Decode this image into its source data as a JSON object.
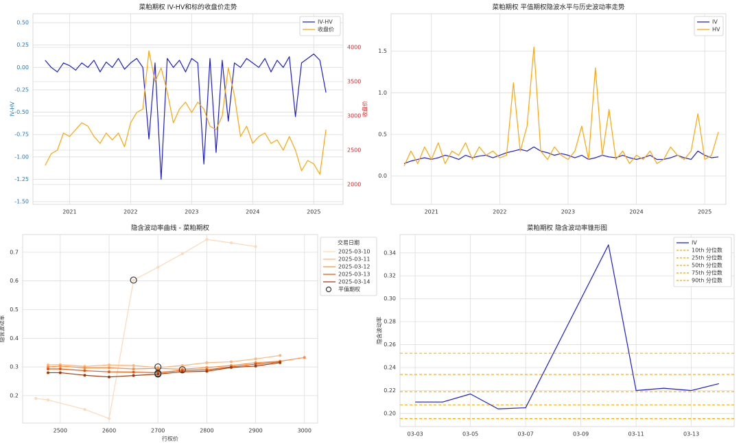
{
  "chart_data": [
    {
      "type": "line",
      "title": "菜粕期权 IV-HV和标的收盘价走势",
      "ylabel": "IV-HV",
      "y2label": "收盘价",
      "ylabel_color": "#1f77b4",
      "y2label_color": "#d62728",
      "legend": "upper right",
      "grid": true,
      "x": [
        2020.6,
        2020.7,
        2020.8,
        2020.9,
        2021.0,
        2021.1,
        2021.2,
        2021.3,
        2021.4,
        2021.5,
        2021.6,
        2021.7,
        2021.8,
        2021.9,
        2022.0,
        2022.1,
        2022.2,
        2022.3,
        2022.4,
        2022.5,
        2022.6,
        2022.7,
        2022.8,
        2022.9,
        2023.0,
        2023.1,
        2023.2,
        2023.3,
        2023.4,
        2023.5,
        2023.6,
        2023.7,
        2023.8,
        2023.9,
        2024.0,
        2024.1,
        2024.2,
        2024.3,
        2024.4,
        2024.5,
        2024.6,
        2024.7,
        2024.8,
        2024.9,
        2025.0,
        2025.1,
        2025.2
      ],
      "xlim": [
        2020.4,
        2025.48
      ],
      "xticks": [
        2021,
        2022,
        2023,
        2024,
        2025
      ],
      "ylim": [
        -1.53,
        0.6
      ],
      "yticks": [
        {
          "value": 0.5,
          "label": "0.50"
        },
        0.25,
        {
          "value": 0,
          "label": "0.00"
        },
        -0.25,
        {
          "value": -0.5,
          "label": "-0.50"
        },
        -0.75,
        {
          "value": -1,
          "label": "-1.00"
        },
        -1.25,
        {
          "value": -1.5,
          "label": "-1.50"
        }
      ],
      "y2lim": [
        1710,
        4490
      ],
      "y2ticks": [
        2000,
        2500,
        3000,
        3500,
        4000
      ],
      "series": [
        {
          "name": "IV-HV",
          "color": "#1a1adb",
          "values": [
            0.08,
            0,
            -0.05,
            0.05,
            0.02,
            -0.03,
            0.05,
            0,
            0.08,
            -0.05,
            0.06,
            0,
            0.1,
            -0.02,
            0.05,
            0.1,
            0,
            -0.8,
            0.05,
            -1.25,
            0.1,
            0,
            0.08,
            -0.05,
            0.1,
            0.05,
            -1.08,
            0.1,
            -0.95,
            0.08,
            -0.6,
            0.05,
            0,
            0.1,
            0.05,
            0,
            0.1,
            -0.05,
            0.08,
            0,
            0.12,
            -0.55,
            0.05,
            0.1,
            0.15,
            0.08,
            -0.28
          ]
        },
        {
          "name": "收盘价",
          "color": "#ffa500",
          "axis": "y2",
          "values": [
            2280,
            2450,
            2500,
            2750,
            2700,
            2800,
            2900,
            2850,
            2700,
            2600,
            2750,
            2650,
            2750,
            2550,
            2900,
            3050,
            3100,
            3950,
            3500,
            3700,
            3350,
            2900,
            3100,
            3200,
            3050,
            3200,
            3100,
            2850,
            2800,
            3000,
            3700,
            3300,
            2700,
            2850,
            2600,
            2700,
            2750,
            2600,
            2650,
            2500,
            2700,
            2500,
            2200,
            2350,
            2300,
            2150,
            2800
          ]
        }
      ]
    },
    {
      "type": "line",
      "title": "菜粕期权 平值期权隐波水平与历史波动率走势",
      "legend": "upper right",
      "grid": true,
      "x": [
        2020.6,
        2020.7,
        2020.8,
        2020.9,
        2021.0,
        2021.1,
        2021.2,
        2021.3,
        2021.4,
        2021.5,
        2021.6,
        2021.7,
        2021.8,
        2021.9,
        2022.0,
        2022.1,
        2022.2,
        2022.3,
        2022.4,
        2022.5,
        2022.6,
        2022.7,
        2022.8,
        2022.9,
        2023.0,
        2023.1,
        2023.2,
        2023.3,
        2023.4,
        2023.5,
        2023.6,
        2023.7,
        2023.8,
        2023.9,
        2024.0,
        2024.1,
        2024.2,
        2024.3,
        2024.4,
        2024.5,
        2024.6,
        2024.7,
        2024.8,
        2024.9,
        2025.0,
        2025.1,
        2025.2
      ],
      "xlim": [
        2020.41,
        2025.31
      ],
      "xticks": [
        2021,
        2022,
        2023,
        2024,
        2025
      ],
      "ylim": [
        -0.34,
        1.95
      ],
      "yticks": [
        {
          "value": 0,
          "label": "0.0"
        },
        0.5,
        {
          "value": 1,
          "label": "1.0"
        },
        1.5
      ],
      "series": [
        {
          "name": "IV",
          "color": "#1a1adb",
          "values": [
            0.15,
            0.18,
            0.2,
            0.22,
            0.2,
            0.22,
            0.25,
            0.23,
            0.2,
            0.25,
            0.22,
            0.24,
            0.25,
            0.22,
            0.25,
            0.28,
            0.3,
            0.32,
            0.3,
            0.35,
            0.3,
            0.28,
            0.25,
            0.27,
            0.25,
            0.22,
            0.25,
            0.2,
            0.22,
            0.25,
            0.23,
            0.22,
            0.25,
            0.22,
            0.2,
            0.22,
            0.25,
            0.2,
            0.2,
            0.22,
            0.25,
            0.22,
            0.2,
            0.3,
            0.25,
            0.22,
            0.23
          ]
        },
        {
          "name": "HV",
          "color": "#ffa500",
          "values": [
            0.12,
            0.3,
            0.15,
            0.35,
            0.2,
            0.4,
            0.15,
            0.3,
            0.25,
            0.4,
            0.2,
            0.35,
            0.25,
            0.3,
            0.22,
            0.25,
            1.12,
            0.3,
            0.6,
            1.55,
            0.3,
            0.2,
            0.35,
            0.25,
            0.2,
            0.3,
            0.6,
            0.2,
            1.3,
            0.25,
            0.8,
            0.2,
            0.3,
            0.15,
            0.25,
            0.2,
            0.3,
            0.15,
            0.2,
            0.35,
            0.25,
            0.2,
            0.3,
            0.75,
            0.2,
            0.25,
            0.53
          ]
        }
      ]
    },
    {
      "type": "line",
      "title": "隐含波动率曲线 - 菜粕期权",
      "xlabel": "行权价",
      "ylabel": "隐含波动率",
      "legend": "outside right",
      "legend_title": "交易日期",
      "grid": true,
      "markers": true,
      "xlim": [
        2423,
        3027
      ],
      "xticks": [
        2500,
        2600,
        2700,
        2800,
        2900,
        3000
      ],
      "ylim": [
        0.104,
        0.762
      ],
      "yticks": [
        0.2,
        0.3,
        0.4,
        0.5,
        0.6,
        0.7
      ],
      "series": [
        {
          "name": "2025-03-10",
          "color": "#fdd9b8",
          "x": [
            2450,
            2475,
            2550,
            2600,
            2650,
            2700,
            2750,
            2800,
            2850,
            2900
          ],
          "values": [
            0.19,
            0.185,
            0.152,
            0.12,
            0.603,
            0.648,
            0.695,
            0.745,
            0.733,
            0.72
          ]
        },
        {
          "name": "2025-03-11",
          "color": "#fdb57a",
          "x": [
            2475,
            2500,
            2550,
            2600,
            2650,
            2700,
            2750,
            2800,
            2850,
            2900,
            2950
          ],
          "values": [
            0.307,
            0.308,
            0.302,
            0.307,
            0.305,
            0.298,
            0.305,
            0.315,
            0.318,
            0.328,
            0.34
          ]
        },
        {
          "name": "2025-03-12",
          "color": "#fd8d3c",
          "x": [
            2475,
            2500,
            2550,
            2600,
            2650,
            2700,
            2750,
            2800,
            2850,
            2900,
            2950,
            3000
          ],
          "values": [
            0.3,
            0.303,
            0.297,
            0.297,
            0.293,
            0.295,
            0.292,
            0.298,
            0.305,
            0.315,
            0.32,
            0.333
          ]
        },
        {
          "name": "2025-03-13",
          "color": "#e6550d",
          "x": [
            2475,
            2500,
            2550,
            2600,
            2650,
            2700,
            2750,
            2800,
            2850,
            2900,
            2950
          ],
          "values": [
            0.293,
            0.293,
            0.287,
            0.283,
            0.282,
            0.28,
            0.288,
            0.29,
            0.3,
            0.31,
            0.318
          ]
        },
        {
          "name": "2025-03-14",
          "color": "#a63603",
          "x": [
            2475,
            2500,
            2550,
            2600,
            2650,
            2700,
            2750,
            2800,
            2850,
            2900,
            2950
          ],
          "values": [
            0.28,
            0.28,
            0.271,
            0.265,
            0.27,
            0.275,
            0.283,
            0.285,
            0.298,
            0.303,
            0.315
          ]
        }
      ],
      "atm": {
        "name": "平值期权",
        "x": [
          2650,
          2700,
          2700,
          2700,
          2750
        ],
        "values": [
          0.603,
          0.3,
          0.278,
          0.275,
          0.29
        ]
      }
    },
    {
      "type": "line",
      "title": "菜粕期权 隐含波动率锥形图",
      "ylabel": "隐含波动率",
      "legend": "upper right",
      "grid": true,
      "categories": [
        "03-03",
        "03-04",
        "03-05",
        "03-06",
        "03-07",
        "03-10",
        "03-11",
        "03-12",
        "03-13",
        "03-14"
      ],
      "xticks": [
        "03-03",
        "03-05",
        "03-07",
        "03-09",
        "03-11",
        "03-13"
      ],
      "ylim": [
        0.1886,
        0.356
      ],
      "yticks": [
        {
          "value": 0.2,
          "label": "0.20"
        },
        0.22,
        0.24,
        0.26,
        0.28,
        {
          "value": 0.3,
          "label": "0.30"
        },
        0.32,
        0.34
      ],
      "series": [
        {
          "name": "IV",
          "color": "#1a1adb",
          "values": [
            0.21,
            0.21,
            0.217,
            0.204,
            0.205,
            0.347,
            0.22,
            0.222,
            0.22,
            0.226
          ]
        }
      ],
      "percentiles": [
        {
          "name": "10th 分位数",
          "color": "#ffa500",
          "value": 0.1955
        },
        {
          "name": "25th 分位数",
          "color": "#ffa500",
          "value": 0.2075
        },
        {
          "name": "50th 分位数",
          "color": "#ffa500",
          "value": 0.219
        },
        {
          "name": "75th 分位数",
          "color": "#ffa500",
          "value": 0.234
        },
        {
          "name": "90th 分位数",
          "color": "#ffa500",
          "value": 0.2525
        }
      ]
    }
  ]
}
